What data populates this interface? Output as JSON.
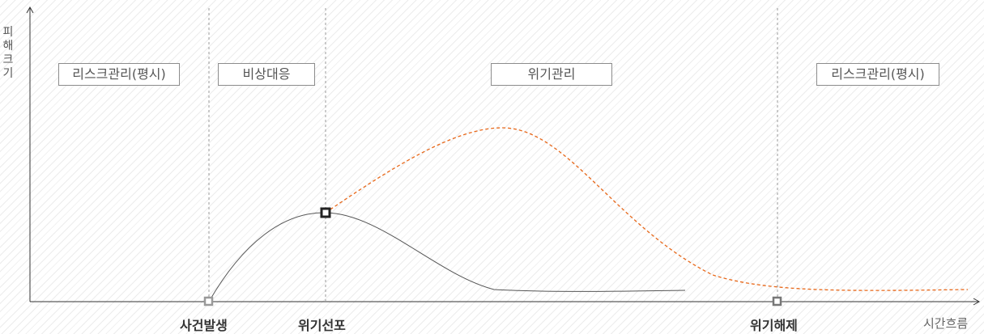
{
  "axes": {
    "y_label_chars": [
      "피",
      "해",
      "크",
      "기"
    ],
    "x_label": "시간흐름"
  },
  "phases": [
    {
      "label": "리스크관리(평시)"
    },
    {
      "label": "비상대응"
    },
    {
      "label": "위기관리"
    },
    {
      "label": "리스크관리(평시)"
    }
  ],
  "events": [
    {
      "label": "사건발생"
    },
    {
      "label": "위기선포"
    },
    {
      "label": "위기해제"
    }
  ],
  "colors": {
    "axis": "#333333",
    "divider": "#999999",
    "actual_curve": "#555555",
    "projected_curve": "#e8681a",
    "marker_event": "#999999",
    "marker_declare": "#222222",
    "marker_release": "#777777"
  }
}
